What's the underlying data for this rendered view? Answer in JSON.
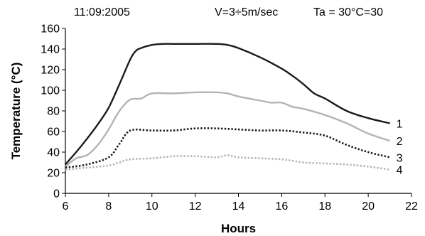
{
  "header": {
    "date": "11:09:2005",
    "speed": "V=3÷5m/sec",
    "ambient": "Ta = 30°C=30"
  },
  "chart_data": {
    "type": "line",
    "xlabel": "Hours",
    "ylabel": "Temperature (°C)",
    "xlim": [
      6,
      22
    ],
    "ylim": [
      0,
      160
    ],
    "xticks": [
      6,
      8,
      10,
      12,
      14,
      16,
      18,
      20,
      22
    ],
    "yticks": [
      0,
      20,
      40,
      60,
      80,
      100,
      120,
      140,
      160
    ],
    "grid": false,
    "series": [
      {
        "name": "1",
        "color": "#1a1a1a",
        "style": "solid",
        "x": [
          6,
          6.5,
          7,
          7.5,
          8,
          8.5,
          9,
          9.25,
          9.5,
          10,
          10.5,
          11,
          12,
          13,
          13.5,
          14,
          15,
          16,
          16.5,
          17,
          17.5,
          18,
          19,
          20,
          21
        ],
        "y": [
          28,
          40,
          53,
          67,
          83,
          106,
          130,
          138,
          141,
          144,
          145,
          145,
          145,
          145,
          144,
          141,
          132,
          121,
          114,
          106,
          97,
          92,
          80,
          73,
          68
        ]
      },
      {
        "name": "2",
        "color": "#b4b4b4",
        "style": "solid",
        "x": [
          6,
          6.5,
          7,
          7.5,
          8,
          8.5,
          9,
          9.5,
          10,
          11,
          12,
          13,
          13.5,
          14,
          15,
          15.5,
          16,
          16.5,
          17,
          18,
          19,
          20,
          21
        ],
        "y": [
          26,
          34,
          37,
          47,
          62,
          80,
          91,
          92,
          97,
          97,
          98,
          98,
          97,
          94,
          90,
          88,
          88,
          84,
          82,
          76,
          68,
          58,
          51
        ]
      },
      {
        "name": "3",
        "color": "#1a1a1a",
        "style": "dotted",
        "x": [
          6,
          7,
          8,
          8.5,
          9,
          10,
          11,
          12,
          13,
          14,
          15,
          16,
          17,
          18,
          19,
          20,
          21
        ],
        "y": [
          25,
          28,
          35,
          48,
          61,
          61,
          61,
          63,
          63,
          62,
          61,
          61,
          59,
          56,
          47,
          40,
          35
        ]
      },
      {
        "name": "4",
        "color": "#b4b4b4",
        "style": "dotted",
        "x": [
          6,
          7,
          8,
          8.5,
          9,
          10,
          11,
          12,
          13,
          13.5,
          14,
          15,
          16,
          17,
          18,
          19,
          20,
          21
        ],
        "y": [
          23,
          25,
          27,
          30,
          33,
          34,
          36,
          36,
          35,
          37,
          35,
          34,
          33,
          30,
          29,
          28,
          26,
          23
        ]
      }
    ]
  }
}
